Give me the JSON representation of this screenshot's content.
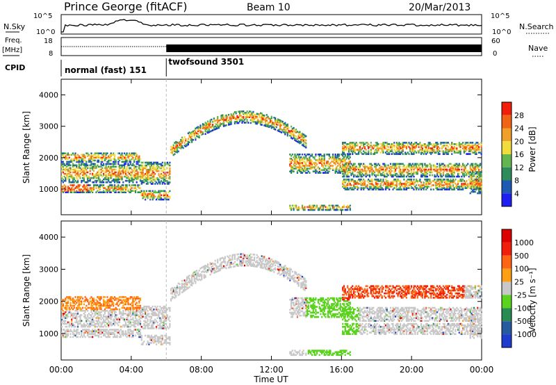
{
  "header": {
    "station": "Prince George (fitACF)",
    "beam": "Beam 10",
    "date": "20/Mar/2013"
  },
  "side_labels": {
    "nsky": "N.Sky",
    "nsearch": "N.Search",
    "freq_line1": "Freq.",
    "freq_line2": "[MHz]",
    "nave": "Nave",
    "cpid": "CPID",
    "nsky_ticks": [
      "10^5",
      "10^0"
    ],
    "nsearch_ticks": [
      "10^5",
      "10^0"
    ],
    "freq_ticks": [
      "18",
      "8"
    ],
    "nave_ticks": [
      "60",
      "0"
    ]
  },
  "cpid_segments": [
    {
      "label": "normal (fast) 151",
      "start_hour": 0,
      "end_hour": 6.0
    },
    {
      "label": "twofsound 3501",
      "start_hour": 6.0,
      "end_hour": 24
    }
  ],
  "chart_data": [
    {
      "type": "heatmap",
      "quantity": "Power",
      "ylabel": "Slant Range [km]",
      "xlabel": "Time UT",
      "ylim": [
        180,
        4500
      ],
      "xlim": [
        "00:00",
        "24:00"
      ],
      "y_ticks": [
        "1000",
        "2000",
        "3000",
        "4000"
      ],
      "colorbar": {
        "label": "Power [dB]",
        "ticks": [
          "4",
          "8",
          "12",
          "16",
          "20",
          "24",
          "28"
        ],
        "colors": [
          "#1e1ef0",
          "#1e5ab4",
          "#2d8c5a",
          "#64b450",
          "#f0dc3c",
          "#f0a028",
          "#f06414",
          "#f01e0a"
        ]
      }
    },
    {
      "type": "heatmap",
      "quantity": "Velocity",
      "ylabel": "Slant Range [km]",
      "xlabel": "Time UT",
      "ylim": [
        180,
        4500
      ],
      "xlim": [
        "00:00",
        "24:00"
      ],
      "y_ticks": [
        "1000",
        "2000",
        "3000",
        "4000"
      ],
      "colorbar": {
        "label": "Velocity [m s⁻¹]",
        "ticks": [
          "1000",
          "500",
          "100",
          "25",
          "-25",
          "-100",
          "-500",
          "-1000"
        ],
        "colors": [
          "#1e3ccd",
          "#285aa0",
          "#288c50",
          "#5ad21e",
          "#c8c8c8",
          "#ffa014",
          "#ff6414",
          "#f01e0a",
          "#dc0000"
        ]
      }
    }
  ],
  "x_ticks": [
    "00:00",
    "04:00",
    "08:00",
    "12:00",
    "16:00",
    "20:00",
    "00:00"
  ],
  "xlabel": "Time UT"
}
